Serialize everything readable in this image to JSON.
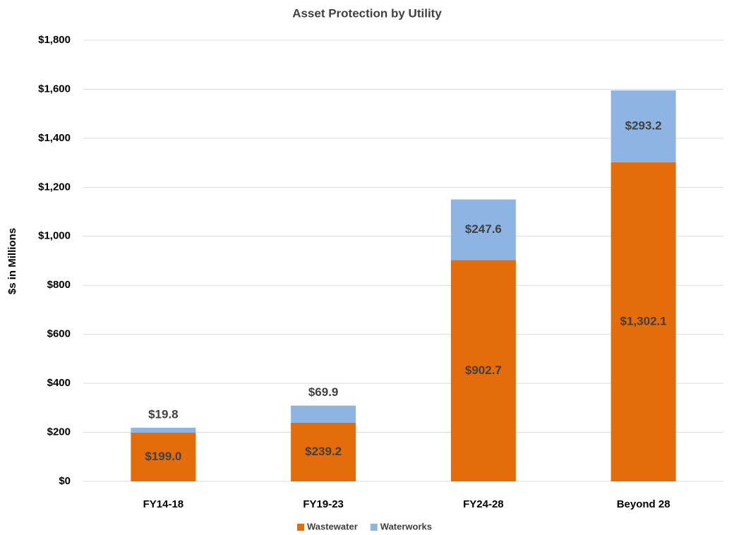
{
  "chart_data": {
    "type": "stacked_bar",
    "title": "Asset Protection by Utility",
    "y_label": "$s in Millions",
    "categories": [
      "FY14-18",
      "FY19-23",
      "FY24-28",
      "Beyond 28"
    ],
    "series": [
      {
        "name": "Wastewater",
        "color": "#e46c0a",
        "values": [
          199.0,
          239.2,
          902.7,
          1302.1
        ],
        "value_labels": [
          "$199.0",
          "$239.2",
          "$902.7",
          "$1,302.1"
        ]
      },
      {
        "name": "Waterworks",
        "color": "#8eb4e3",
        "values": [
          19.8,
          69.9,
          247.6,
          293.2
        ],
        "value_labels": [
          "$19.8",
          "$69.9",
          "$247.6",
          "$293.2"
        ]
      }
    ],
    "ylim": [
      0,
      1800
    ],
    "yticks": [
      {
        "value": 0,
        "label": "$0"
      },
      {
        "value": 200,
        "label": "$200"
      },
      {
        "value": 400,
        "label": "$400"
      },
      {
        "value": 600,
        "label": "$600"
      },
      {
        "value": 800,
        "label": "$800"
      },
      {
        "value": 1000,
        "label": "$1,000"
      },
      {
        "value": 1200,
        "label": "$1,200"
      },
      {
        "value": 1400,
        "label": "$1,400"
      },
      {
        "value": 1600,
        "label": "$1,600"
      },
      {
        "value": 1800,
        "label": "$1,800"
      }
    ],
    "grid": true,
    "legend": "bottom"
  }
}
